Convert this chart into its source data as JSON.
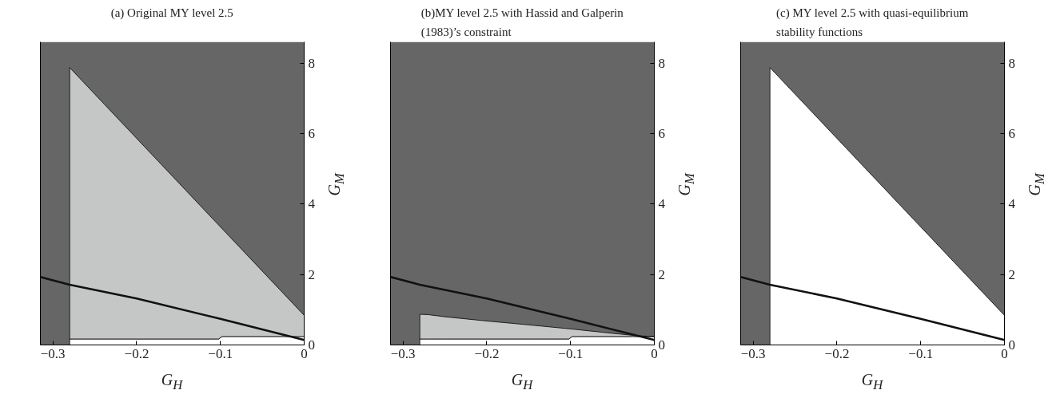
{
  "chart_data": [
    {
      "type": "area",
      "stacked": true,
      "title": "(a) Original MY level 2.5",
      "xlabel": "G$_{H}$",
      "ylabel": "G$_{M}$",
      "xlim": [
        -0.315,
        0
      ],
      "ylim": [
        0,
        8.6
      ],
      "xticks": [
        {
          "value": -0.3,
          "label": "−0.3"
        },
        {
          "value": -0.2,
          "label": "−0.2"
        },
        {
          "value": -0.1,
          "label": "−0.1"
        },
        {
          "value": 0,
          "label": "0"
        }
      ],
      "yticks": [
        0,
        2,
        4,
        6,
        8
      ],
      "bands": [
        {
          "axis": "x",
          "from": -0.315,
          "to": 0,
          "color": "#666666"
        }
      ],
      "series": [
        {
          "color": "#ffffff",
          "x": [
            -0.28,
            -0.102,
            -0.098,
            0
          ],
          "values": [
            0.17,
            0.17,
            0.24,
            0.24
          ]
        },
        {
          "color": "#c5c6c6",
          "x": [
            -0.28,
            -0.102,
            -0.098,
            0
          ],
          "values": [
            7.7,
            3.23,
            3.06,
            0.6
          ]
        },
        {
          "type": "line",
          "color": "#111111",
          "x": [
            -0.315,
            -0.28,
            -0.2,
            -0.1,
            0
          ],
          "values": [
            1.93,
            1.71,
            1.32,
            0.74,
            0.14
          ]
        }
      ]
    },
    {
      "type": "area",
      "stacked": true,
      "title": "(b)MY level 2.5 with Hassid and Galperin (1983)’s constraint",
      "xlabel": "G$_{H}$",
      "ylabel": "G$_{M}$",
      "xlim": [
        -0.315,
        0
      ],
      "ylim": [
        0,
        8.6
      ],
      "xticks": [
        {
          "value": -0.3,
          "label": "−0.3"
        },
        {
          "value": -0.2,
          "label": "−0.2"
        },
        {
          "value": -0.1,
          "label": "−0.1"
        },
        {
          "value": 0,
          "label": "0"
        }
      ],
      "yticks": [
        0,
        2,
        4,
        6,
        8
      ],
      "bands": [
        {
          "axis": "x",
          "from": -0.315,
          "to": 0,
          "color": "#666666"
        }
      ],
      "series": [
        {
          "color": "#ffffff",
          "x": [
            -0.28,
            -0.27,
            -0.25,
            -0.2,
            -0.15,
            -0.102,
            -0.098,
            -0.05,
            -0.02,
            0
          ],
          "values": [
            0.17,
            0.17,
            0.17,
            0.17,
            0.17,
            0.17,
            0.24,
            0.24,
            0.24,
            0.24
          ]
        },
        {
          "color": "#c5c6c6",
          "x": [
            -0.28,
            -0.27,
            -0.25,
            -0.2,
            -0.15,
            -0.102,
            -0.098,
            -0.05,
            -0.02,
            0
          ],
          "values": [
            0.7,
            0.69,
            0.63,
            0.51,
            0.4,
            0.29,
            0.21,
            0.09,
            0.02,
            0
          ]
        },
        {
          "type": "line",
          "color": "#111111",
          "x": [
            -0.315,
            -0.28,
            -0.2,
            -0.1,
            0
          ],
          "values": [
            1.93,
            1.71,
            1.32,
            0.74,
            0.14
          ]
        }
      ]
    },
    {
      "type": "area",
      "title": "(c) MY level 2.5 with quasi-equilibrium stability functions",
      "xlabel": "G$_{H}$",
      "ylabel": "G$_{M}$",
      "xlim": [
        -0.315,
        0
      ],
      "ylim": [
        0,
        8.6
      ],
      "xticks": [
        {
          "value": -0.3,
          "label": "−0.3"
        },
        {
          "value": -0.2,
          "label": "−0.2"
        },
        {
          "value": -0.1,
          "label": "−0.1"
        },
        {
          "value": 0,
          "label": "0"
        }
      ],
      "yticks": [
        0,
        2,
        4,
        6,
        8
      ],
      "bands": [
        {
          "axis": "x",
          "from": -0.315,
          "to": 0,
          "color": "#666666"
        }
      ],
      "series": [
        {
          "color": "#ffffff",
          "x": [
            -0.28,
            0
          ],
          "values": [
            7.87,
            0.84
          ]
        },
        {
          "type": "line",
          "color": "#111111",
          "x": [
            -0.315,
            -0.28,
            -0.2,
            -0.1,
            0
          ],
          "values": [
            1.93,
            1.71,
            1.32,
            0.74,
            0.14
          ]
        }
      ]
    }
  ]
}
